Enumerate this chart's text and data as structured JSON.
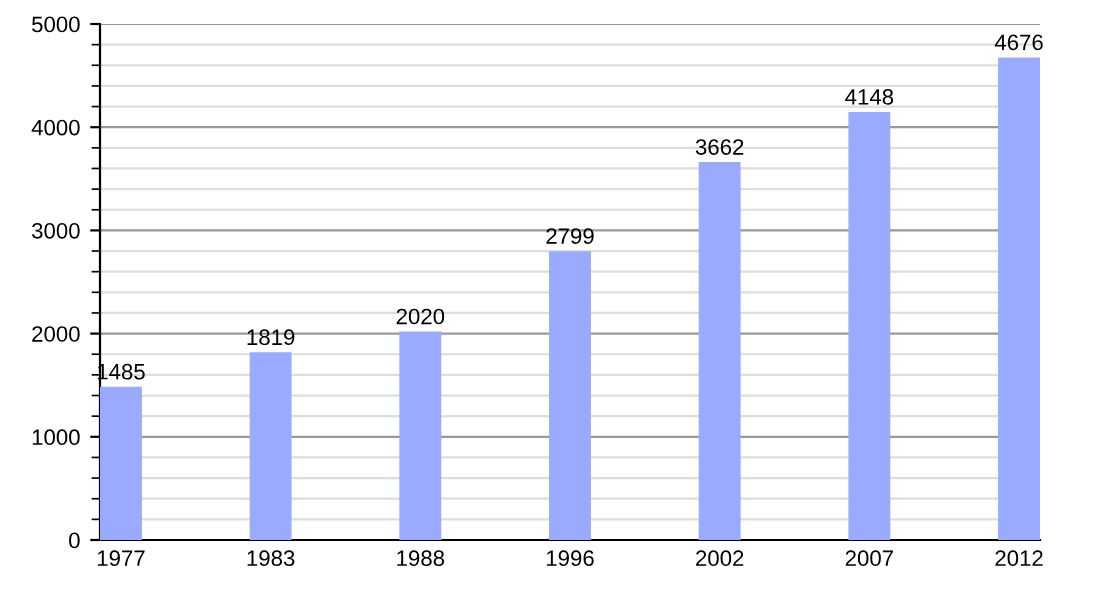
{
  "chart_data": {
    "type": "bar",
    "categories": [
      "1977",
      "1983",
      "1988",
      "1996",
      "2002",
      "2007",
      "2012"
    ],
    "values": [
      1485,
      1819,
      2020,
      2799,
      3662,
      4148,
      4676
    ],
    "color": "#99aaff",
    "ylim": [
      0,
      5000
    ],
    "yticks": [
      0,
      1000,
      2000,
      3000,
      4000,
      5000
    ],
    "grid": "y",
    "data_labels": true
  }
}
